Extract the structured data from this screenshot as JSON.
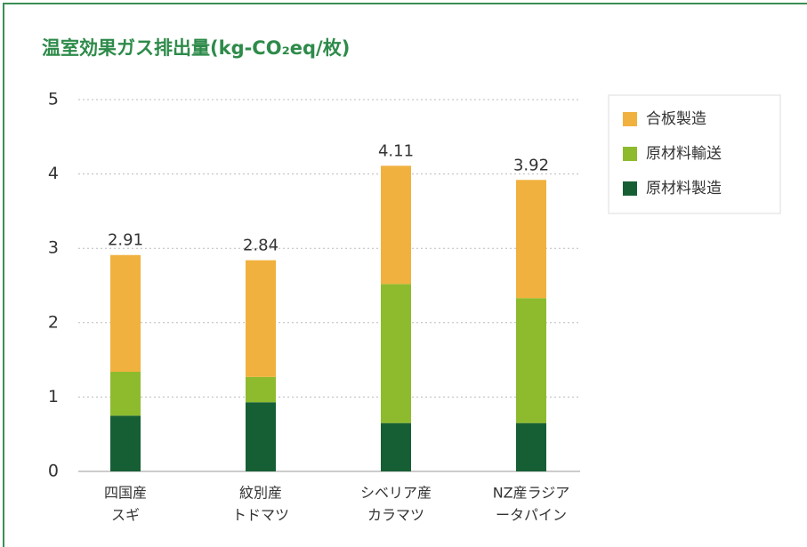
{
  "chart_data": {
    "type": "stacked_bar",
    "title": "温室効果ガス排出量(kg-CO₂eq/枚)",
    "categories": [
      [
        "四国産",
        "スギ"
      ],
      [
        "紋別産",
        "トドマツ"
      ],
      [
        "シベリア産",
        "カラマツ"
      ],
      [
        "NZ産ラジア",
        "ータパイン"
      ]
    ],
    "series": [
      {
        "name": "原材料製造",
        "color": "#165f35",
        "values": [
          0.75,
          0.93,
          0.65,
          0.65
        ]
      },
      {
        "name": "原材料輸送",
        "color": "#8dbb2d",
        "values": [
          0.59,
          0.34,
          1.87,
          1.68
        ]
      },
      {
        "name": "合板製造",
        "color": "#f1b13e",
        "values": [
          1.57,
          1.57,
          1.59,
          1.59
        ]
      }
    ],
    "totals": [
      2.91,
      2.84,
      4.11,
      3.92
    ],
    "ylim": [
      0,
      5
    ],
    "yticks": [
      0,
      1,
      2,
      3,
      4,
      5
    ],
    "grid": true,
    "legend": "upper right"
  }
}
